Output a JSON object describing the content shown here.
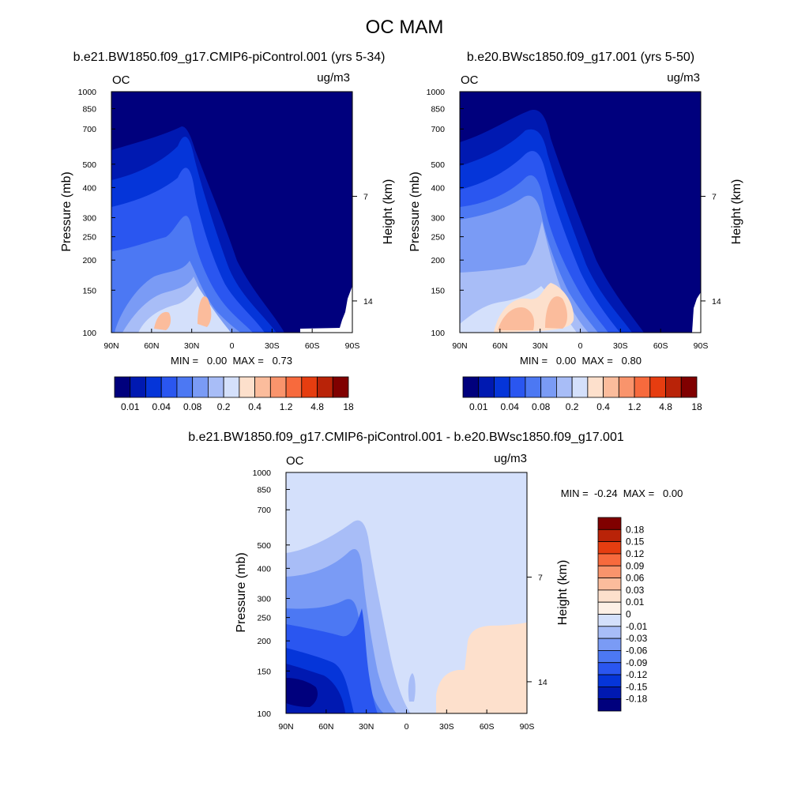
{
  "figure_title": "OC MAM",
  "chart_data": [
    {
      "type": "contour",
      "title": "b.e21.BW1850.f09_g17.CMIP6-piControl.001 (yrs 5-34)",
      "variable": "OC",
      "units": "ug/m3",
      "xlabel": "",
      "ylabel": "Pressure (mb)",
      "y2label": "Height (km)",
      "x_range": [
        90,
        -90
      ],
      "x_ticks": [
        "90N",
        "60N",
        "30N",
        "0",
        "30S",
        "60S",
        "90S"
      ],
      "y_range": [
        1000,
        100
      ],
      "y_ticks": [
        "100",
        "150",
        "200",
        "250",
        "300",
        "400",
        "500",
        "700",
        "850",
        "1000"
      ],
      "y2_ticks": [
        "14",
        "7"
      ],
      "min_max_text": "MIN =   0.00  MAX =   0.73",
      "colorbar_labels": [
        "0.01",
        "0.04",
        "0.08",
        "0.2",
        "0.4",
        "1.2",
        "4.8",
        "18"
      ],
      "colorbar_colors": [
        "#00007d",
        "#0019b1",
        "#0535d9",
        "#2a56f0",
        "#4c78f3",
        "#7a9bf5",
        "#a8bdf7",
        "#d4e0fb",
        "#fde0cc",
        "#fbbc9c",
        "#f9946c",
        "#f76a3d",
        "#e63d10",
        "#b92308",
        "#800000"
      ]
    },
    {
      "type": "contour",
      "title": "b.e20.BWsc1850.f09_g17.001 (yrs 5-50)",
      "variable": "OC",
      "units": "ug/m3",
      "xlabel": "",
      "ylabel": "Pressure (mb)",
      "y2label": "Height (km)",
      "x_range": [
        90,
        -90
      ],
      "x_ticks": [
        "90N",
        "60N",
        "30N",
        "0",
        "30S",
        "60S",
        "90S"
      ],
      "y_range": [
        1000,
        100
      ],
      "y_ticks": [
        "100",
        "150",
        "200",
        "250",
        "300",
        "400",
        "500",
        "700",
        "850",
        "1000"
      ],
      "y2_ticks": [
        "14",
        "7"
      ],
      "min_max_text": "MIN =   0.00  MAX =   0.80",
      "colorbar_labels": [
        "0.01",
        "0.04",
        "0.08",
        "0.2",
        "0.4",
        "1.2",
        "4.8",
        "18"
      ],
      "colorbar_colors": [
        "#00007d",
        "#0019b1",
        "#0535d9",
        "#2a56f0",
        "#4c78f3",
        "#7a9bf5",
        "#a8bdf7",
        "#d4e0fb",
        "#fde0cc",
        "#fbbc9c",
        "#f9946c",
        "#f76a3d",
        "#e63d10",
        "#b92308",
        "#800000"
      ]
    },
    {
      "type": "contour",
      "title": "b.e21.BW1850.f09_g17.CMIP6-piControl.001 - b.e20.BWsc1850.f09_g17.001",
      "variable": "OC",
      "units": "ug/m3",
      "xlabel": "",
      "ylabel": "Pressure (mb)",
      "y2label": "Height (km)",
      "x_range": [
        90,
        -90
      ],
      "x_ticks": [
        "90N",
        "60N",
        "30N",
        "0",
        "30S",
        "60S",
        "90S"
      ],
      "y_range": [
        1000,
        100
      ],
      "y_ticks": [
        "100",
        "150",
        "200",
        "250",
        "300",
        "400",
        "500",
        "700",
        "850",
        "1000"
      ],
      "y2_ticks": [
        "14",
        "7"
      ],
      "min_max_text": "MIN =  -0.24  MAX =   0.00",
      "colorbar_labels": [
        "0.18",
        "0.15",
        "0.12",
        "0.09",
        "0.06",
        "0.03",
        "0.01",
        "0",
        "-0.01",
        "-0.03",
        "-0.06",
        "-0.09",
        "-0.12",
        "-0.15",
        "-0.18"
      ],
      "colorbar_colors": [
        "#800000",
        "#b92308",
        "#e63d10",
        "#f76a3d",
        "#f9946c",
        "#fbbc9c",
        "#fde0cc",
        "#fdf0e6",
        "#d4e0fb",
        "#a8bdf7",
        "#7a9bf5",
        "#4c78f3",
        "#2a56f0",
        "#0535d9",
        "#0019b1",
        "#00007d"
      ]
    }
  ]
}
